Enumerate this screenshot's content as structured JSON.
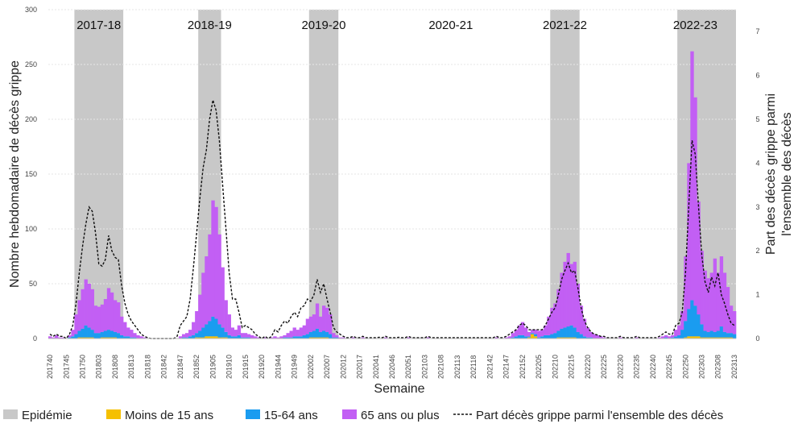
{
  "chart_data": {
    "type": "bar",
    "stacked": true,
    "xlabel": "Semaine",
    "ylabel": "Nombre hebdomadaire de décès grippe",
    "y2label_lines": [
      "Part des décès grippe parmi",
      "l'ensemble des décès"
    ],
    "ylim": [
      0,
      300
    ],
    "yticks": [
      0,
      50,
      100,
      150,
      200,
      250,
      300
    ],
    "y2lim": [
      0,
      7.5
    ],
    "y2ticks": [
      0,
      1,
      2,
      3,
      4,
      5,
      6,
      7
    ],
    "grid": true,
    "legend_position": "bottom",
    "x_tick_labels": [
      "201740",
      "201745",
      "201750",
      "201803",
      "201808",
      "201813",
      "201818",
      "201842",
      "201847",
      "201852",
      "201905",
      "201910",
      "201915",
      "201920",
      "201944",
      "201949",
      "202002",
      "202007",
      "202012",
      "202017",
      "202041",
      "202046",
      "202051",
      "202103",
      "202108",
      "202113",
      "202118",
      "202142",
      "202147",
      "202152",
      "202205",
      "202210",
      "202215",
      "202220",
      "202225",
      "202230",
      "202235",
      "202240",
      "202245",
      "202250",
      "202303",
      "202308",
      "202313"
    ],
    "weeks": [
      "201740",
      "201741",
      "201742",
      "201743",
      "201744",
      "201745",
      "201746",
      "201747",
      "201748",
      "201749",
      "201750",
      "201751",
      "201752",
      "201801",
      "201802",
      "201803",
      "201804",
      "201805",
      "201806",
      "201807",
      "201808",
      "201809",
      "201810",
      "201811",
      "201812",
      "201813",
      "201814",
      "201815",
      "201816",
      "201817",
      "201818",
      "201819",
      "201820",
      "201840",
      "201841",
      "201842",
      "201843",
      "201844",
      "201845",
      "201846",
      "201847",
      "201848",
      "201849",
      "201850",
      "201851",
      "201852",
      "201901",
      "201902",
      "201903",
      "201904",
      "201905",
      "201906",
      "201907",
      "201908",
      "201909",
      "201910",
      "201911",
      "201912",
      "201913",
      "201914",
      "201915",
      "201916",
      "201917",
      "201918",
      "201919",
      "201920",
      "201940",
      "201941",
      "201942",
      "201943",
      "201944",
      "201945",
      "201946",
      "201947",
      "201948",
      "201949",
      "201950",
      "201951",
      "201952",
      "202001",
      "202002",
      "202003",
      "202004",
      "202005",
      "202006",
      "202007",
      "202008",
      "202009",
      "202010",
      "202011",
      "202012",
      "202013",
      "202014",
      "202015",
      "202016",
      "202017",
      "202018",
      "202019",
      "202020",
      "202040",
      "202041",
      "202042",
      "202043",
      "202044",
      "202045",
      "202046",
      "202047",
      "202048",
      "202049",
      "202050",
      "202051",
      "202052",
      "202053",
      "202101",
      "202102",
      "202103",
      "202104",
      "202105",
      "202106",
      "202107",
      "202108",
      "202109",
      "202110",
      "202111",
      "202112",
      "202113",
      "202114",
      "202115",
      "202116",
      "202117",
      "202118",
      "202119",
      "202120",
      "202140",
      "202141",
      "202142",
      "202143",
      "202144",
      "202145",
      "202146",
      "202147",
      "202148",
      "202149",
      "202150",
      "202151",
      "202152",
      "202201",
      "202202",
      "202203",
      "202204",
      "202205",
      "202206",
      "202207",
      "202208",
      "202209",
      "202210",
      "202211",
      "202212",
      "202213",
      "202214",
      "202215",
      "202216",
      "202217",
      "202218",
      "202219",
      "202220",
      "202221",
      "202222",
      "202223",
      "202224",
      "202225",
      "202226",
      "202227",
      "202228",
      "202229",
      "202230",
      "202231",
      "202232",
      "202233",
      "202234",
      "202235",
      "202236",
      "202237",
      "202238",
      "202239",
      "202240",
      "202241",
      "202242",
      "202243",
      "202244",
      "202245",
      "202246",
      "202247",
      "202248",
      "202249",
      "202250",
      "202251",
      "202252",
      "202301",
      "202302",
      "202303",
      "202304",
      "202305",
      "202306",
      "202307",
      "202308",
      "202309",
      "202310",
      "202311",
      "202312",
      "202313"
    ],
    "series": [
      {
        "name": "Moins de 15 ans",
        "color": "#f5c000",
        "values": [
          0,
          0,
          0,
          0,
          0,
          0,
          0,
          0,
          0,
          1,
          1,
          1,
          1,
          1,
          0,
          0,
          1,
          1,
          1,
          1,
          1,
          0,
          0,
          0,
          0,
          0,
          0,
          0,
          0,
          0,
          0,
          0,
          0,
          0,
          0,
          0,
          0,
          0,
          0,
          0,
          0,
          0,
          0,
          0,
          0,
          1,
          1,
          1,
          2,
          2,
          2,
          2,
          1,
          1,
          1,
          0,
          0,
          0,
          0,
          0,
          0,
          0,
          0,
          0,
          0,
          0,
          0,
          0,
          0,
          0,
          0,
          0,
          0,
          0,
          0,
          0,
          0,
          0,
          0,
          0,
          1,
          1,
          1,
          1,
          1,
          1,
          0,
          0,
          0,
          0,
          0,
          0,
          0,
          0,
          0,
          0,
          0,
          0,
          0,
          0,
          0,
          0,
          0,
          0,
          0,
          0,
          0,
          0,
          0,
          0,
          0,
          0,
          0,
          0,
          0,
          0,
          0,
          0,
          0,
          0,
          0,
          0,
          0,
          0,
          0,
          0,
          0,
          0,
          0,
          0,
          0,
          0,
          0,
          0,
          0,
          0,
          0,
          0,
          0,
          0,
          0,
          0,
          0,
          0,
          0,
          0,
          0,
          1,
          4,
          2,
          0,
          0,
          0,
          0,
          0,
          0,
          1,
          1,
          1,
          1,
          1,
          1,
          0,
          0,
          0,
          0,
          0,
          0,
          0,
          0,
          0,
          0,
          0,
          0,
          0,
          0,
          0,
          0,
          0,
          0,
          0,
          0,
          0,
          0,
          0,
          0,
          0,
          0,
          0,
          0,
          0,
          0,
          0,
          0,
          0,
          1,
          2,
          2,
          2,
          2,
          1,
          1,
          1,
          1,
          1,
          1,
          1,
          1,
          1,
          1,
          0
        ]
      },
      {
        "name": "15-64 ans",
        "color": "#1a9cf0",
        "values": [
          0,
          0,
          0,
          0,
          0,
          0,
          1,
          2,
          4,
          6,
          8,
          11,
          9,
          7,
          5,
          5,
          5,
          6,
          7,
          6,
          5,
          5,
          3,
          2,
          2,
          1,
          1,
          0,
          0,
          0,
          0,
          0,
          0,
          0,
          0,
          0,
          0,
          0,
          0,
          0,
          0,
          1,
          1,
          2,
          3,
          4,
          6,
          9,
          11,
          14,
          18,
          16,
          12,
          9,
          5,
          3,
          2,
          2,
          3,
          1,
          1,
          1,
          0,
          0,
          0,
          0,
          0,
          0,
          0,
          0,
          0,
          0,
          1,
          1,
          1,
          2,
          2,
          2,
          3,
          4,
          5,
          6,
          8,
          5,
          6,
          5,
          4,
          1,
          1,
          0,
          0,
          0,
          0,
          0,
          0,
          0,
          0,
          0,
          0,
          0,
          0,
          0,
          0,
          0,
          0,
          0,
          0,
          0,
          0,
          0,
          0,
          0,
          0,
          0,
          0,
          0,
          0,
          0,
          0,
          0,
          0,
          0,
          0,
          0,
          0,
          0,
          0,
          0,
          0,
          0,
          0,
          0,
          0,
          0,
          0,
          0,
          0,
          0,
          0,
          0,
          0,
          0,
          1,
          2,
          3,
          3,
          2,
          1,
          1,
          2,
          1,
          2,
          3,
          3,
          4,
          5,
          6,
          8,
          9,
          10,
          11,
          9,
          6,
          4,
          2,
          1,
          1,
          0,
          0,
          0,
          0,
          0,
          0,
          0,
          0,
          0,
          0,
          0,
          0,
          0,
          0,
          0,
          0,
          0,
          0,
          0,
          0,
          0,
          0,
          1,
          0,
          1,
          2,
          3,
          8,
          15,
          25,
          33,
          28,
          20,
          12,
          6,
          5,
          6,
          5,
          6,
          10,
          5,
          4,
          4,
          4
        ]
      },
      {
        "name": "65 ans ou plus",
        "color": "#c25ff4",
        "values": [
          2,
          1,
          3,
          1,
          1,
          0,
          2,
          6,
          18,
          28,
          36,
          42,
          40,
          37,
          25,
          24,
          25,
          29,
          38,
          35,
          29,
          28,
          17,
          13,
          8,
          7,
          4,
          3,
          2,
          1,
          0,
          0,
          0,
          0,
          0,
          0,
          0,
          0,
          0,
          0,
          2,
          3,
          4,
          6,
          12,
          20,
          33,
          50,
          62,
          79,
          106,
          102,
          82,
          55,
          29,
          19,
          8,
          6,
          9,
          4,
          4,
          3,
          3,
          2,
          1,
          0,
          1,
          0,
          1,
          2,
          1,
          2,
          2,
          4,
          6,
          8,
          6,
          8,
          9,
          14,
          14,
          15,
          23,
          14,
          23,
          22,
          18,
          4,
          2,
          1,
          1,
          0,
          0,
          1,
          0,
          0,
          1,
          0,
          0,
          0,
          0,
          0,
          0,
          1,
          0,
          0,
          0,
          0,
          0,
          0,
          1,
          0,
          0,
          0,
          0,
          0,
          1,
          0,
          0,
          0,
          0,
          0,
          0,
          0,
          0,
          0,
          0,
          0,
          0,
          0,
          0,
          0,
          0,
          0,
          0,
          0,
          0,
          1,
          0,
          0,
          1,
          2,
          4,
          6,
          9,
          12,
          8,
          4,
          3,
          4,
          6,
          6,
          9,
          17,
          24,
          27,
          38,
          51,
          60,
          67,
          56,
          60,
          44,
          26,
          16,
          9,
          5,
          4,
          3,
          2,
          1,
          0,
          0,
          0,
          0,
          1,
          0,
          0,
          0,
          0,
          1,
          0,
          0,
          0,
          0,
          0,
          0,
          1,
          2,
          2,
          2,
          2,
          6,
          9,
          17,
          59,
          133,
          227,
          190,
          103,
          67,
          55,
          49,
          53,
          67,
          53,
          64,
          54,
          42,
          25,
          21
        ]
      }
    ],
    "line": {
      "name": "Part décès grippe parmi l'ensemble des décès",
      "axis": "right",
      "color": "#111111",
      "values": [
        0.1,
        0.05,
        0.1,
        0.05,
        0.05,
        0,
        0.1,
        0.3,
        0.8,
        1.5,
        2.1,
        2.6,
        3.0,
        2.9,
        2.4,
        1.7,
        1.65,
        1.8,
        2.35,
        2.0,
        1.85,
        1.8,
        1.2,
        0.8,
        0.55,
        0.4,
        0.3,
        0.2,
        0.1,
        0.05,
        0.02,
        0,
        0,
        0,
        0,
        0,
        0,
        0,
        0,
        0.05,
        0.3,
        0.4,
        0.5,
        0.9,
        1.6,
        2.4,
        3.2,
        3.9,
        4.3,
        5.0,
        5.44,
        5.2,
        4.5,
        3.5,
        2.5,
        1.5,
        0.9,
        0.9,
        0.6,
        0.25,
        0.3,
        0.25,
        0.2,
        0.1,
        0.05,
        0,
        0.05,
        0,
        0.05,
        0.2,
        0.15,
        0.3,
        0.4,
        0.35,
        0.5,
        0.6,
        0.5,
        0.7,
        0.75,
        0.9,
        0.85,
        1.0,
        1.35,
        1.05,
        1.25,
        0.9,
        0.6,
        0.25,
        0.15,
        0.1,
        0.05,
        0.02,
        0.02,
        0.05,
        0.02,
        0.02,
        0.05,
        0.02,
        0.02,
        0.02,
        0.02,
        0.03,
        0.02,
        0.05,
        0.02,
        0.02,
        0.02,
        0.03,
        0.02,
        0.02,
        0.05,
        0.02,
        0.02,
        0.02,
        0.02,
        0.02,
        0.05,
        0.02,
        0.02,
        0.02,
        0.02,
        0.02,
        0.02,
        0.02,
        0.02,
        0.02,
        0.02,
        0.02,
        0.02,
        0.02,
        0.02,
        0.02,
        0.02,
        0.02,
        0.02,
        0.02,
        0.02,
        0.05,
        0.02,
        0.02,
        0.05,
        0.1,
        0.15,
        0.2,
        0.3,
        0.35,
        0.3,
        0.2,
        0.2,
        0.2,
        0.2,
        0.2,
        0.3,
        0.45,
        0.6,
        0.7,
        1.0,
        1.35,
        1.55,
        1.72,
        1.5,
        1.55,
        1.15,
        0.7,
        0.4,
        0.25,
        0.15,
        0.1,
        0.08,
        0.05,
        0.05,
        0.02,
        0.02,
        0.02,
        0.02,
        0.05,
        0.02,
        0.02,
        0.02,
        0.02,
        0.05,
        0.02,
        0.02,
        0.02,
        0.02,
        0.02,
        0.02,
        0.05,
        0.1,
        0.15,
        0.1,
        0.1,
        0.3,
        0.35,
        0.6,
        1.5,
        3.0,
        4.52,
        4.2,
        3.0,
        1.9,
        1.3,
        1.05,
        1.4,
        1.2,
        1.5,
        1.0,
        0.8,
        0.55,
        0.35,
        0.3
      ]
    },
    "epidemic": {
      "name": "Epidémie",
      "color": "#c8c8c8",
      "periods": [
        {
          "start": "201748",
          "end": "201810"
        },
        {
          "start": "201901",
          "end": "201907"
        },
        {
          "start": "202002",
          "end": "202010"
        },
        {
          "start": "202209",
          "end": "202217"
        },
        {
          "start": "202248",
          "end": "202313"
        }
      ]
    },
    "season_labels": [
      {
        "text": "2017-18",
        "week": "201803"
      },
      {
        "text": "2018-19",
        "week": "201904"
      },
      {
        "text": "2019-20",
        "week": "202006"
      },
      {
        "text": "2020-21",
        "week": "202111"
      },
      {
        "text": "2021-22",
        "week": "202213"
      },
      {
        "text": "2022-23",
        "week": "202301"
      }
    ],
    "legend": [
      "Epidémie",
      "Moins de 15 ans",
      "15-64 ans",
      "65 ans ou plus",
      "Part décès grippe parmi l'ensemble des décès"
    ]
  }
}
